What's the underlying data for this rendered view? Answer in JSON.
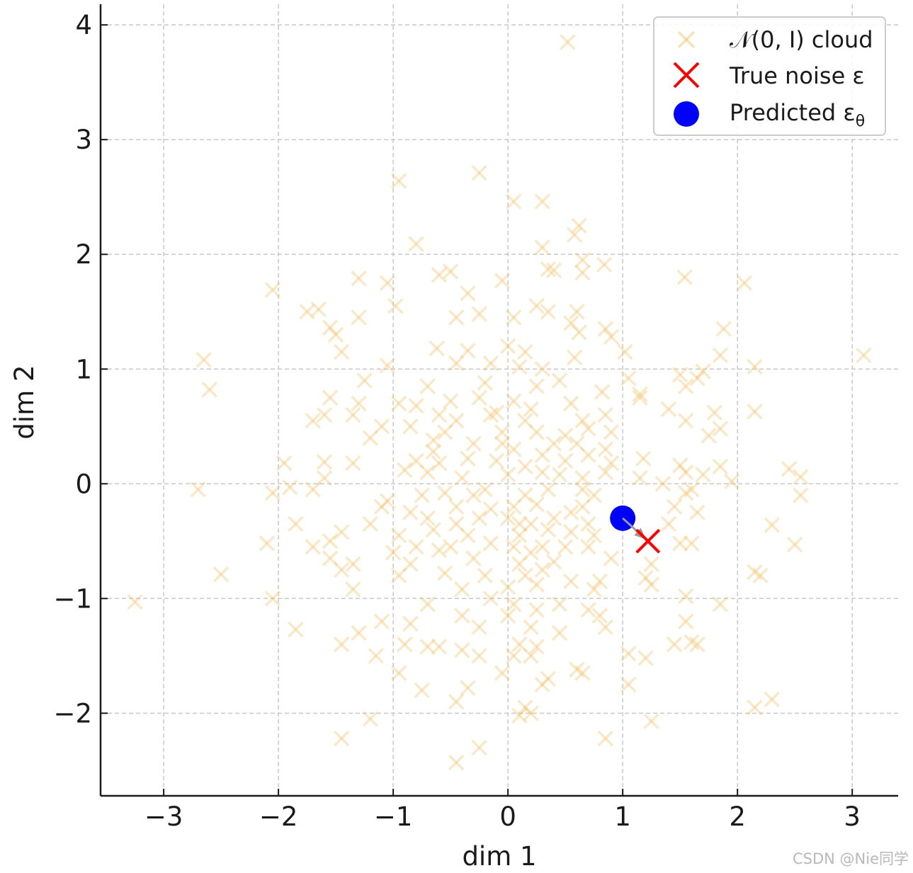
{
  "chart_data": {
    "type": "scatter",
    "xlabel": "dim 1",
    "ylabel": "dim 2",
    "xlim": [
      -3.55,
      3.4
    ],
    "ylim": [
      -2.72,
      4.18
    ],
    "xticks": [
      {
        "value": -3,
        "label": "−3"
      },
      {
        "value": -2,
        "label": "−2"
      },
      {
        "value": -1,
        "label": "−1"
      },
      {
        "value": 0,
        "label": "0"
      },
      {
        "value": 1,
        "label": "1"
      },
      {
        "value": 2,
        "label": "2"
      },
      {
        "value": 3,
        "label": "3"
      }
    ],
    "yticks": [
      {
        "value": -2,
        "label": "−2"
      },
      {
        "value": -1,
        "label": "−1"
      },
      {
        "value": 0,
        "label": "0"
      },
      {
        "value": 1,
        "label": "1"
      },
      {
        "value": 2,
        "label": "2"
      },
      {
        "value": 3,
        "label": "3"
      },
      {
        "value": 4,
        "label": "4"
      }
    ],
    "grid": true,
    "legend_position": "top-right",
    "series": [
      {
        "name_text": "𝒩(0, I) cloud",
        "marker": "x",
        "color": "#f0c060",
        "points": [
          [
            0.52,
            3.85
          ],
          [
            -0.25,
            2.71
          ],
          [
            -0.95,
            2.64
          ],
          [
            0.05,
            2.46
          ],
          [
            0.3,
            2.46
          ],
          [
            0.62,
            2.25
          ],
          [
            0.58,
            2.17
          ],
          [
            -0.8,
            2.09
          ],
          [
            0.3,
            2.06
          ],
          [
            0.65,
            1.95
          ],
          [
            -0.5,
            1.85
          ],
          [
            -0.6,
            1.82
          ],
          [
            0.35,
            1.87
          ],
          [
            0.4,
            1.86
          ],
          [
            0.65,
            1.84
          ],
          [
            0.84,
            1.91
          ],
          [
            1.54,
            1.8
          ],
          [
            2.06,
            1.75
          ],
          [
            -1.3,
            1.79
          ],
          [
            -1.05,
            1.75
          ],
          [
            -0.05,
            1.77
          ],
          [
            -2.05,
            1.69
          ],
          [
            -0.35,
            1.66
          ],
          [
            -1.75,
            1.5
          ],
          [
            -1.65,
            1.52
          ],
          [
            -0.98,
            1.55
          ],
          [
            -0.45,
            1.45
          ],
          [
            0.25,
            1.55
          ],
          [
            0.35,
            1.5
          ],
          [
            0.6,
            1.5
          ],
          [
            -1.3,
            1.45
          ],
          [
            -1.55,
            1.36
          ],
          [
            -1.5,
            1.3
          ],
          [
            -0.25,
            1.48
          ],
          [
            0.05,
            1.45
          ],
          [
            0.55,
            1.4
          ],
          [
            0.85,
            1.35
          ],
          [
            0.9,
            1.28
          ],
          [
            1.88,
            1.35
          ],
          [
            0.62,
            1.32
          ],
          [
            -1.45,
            1.15
          ],
          [
            -0.62,
            1.18
          ],
          [
            -0.35,
            1.16
          ],
          [
            0.0,
            1.2
          ],
          [
            0.15,
            1.15
          ],
          [
            0.58,
            1.1
          ],
          [
            1.02,
            1.15
          ],
          [
            1.85,
            1.12
          ],
          [
            3.1,
            1.12
          ],
          [
            -2.65,
            1.08
          ],
          [
            -1.05,
            1.03
          ],
          [
            -0.45,
            1.05
          ],
          [
            -0.15,
            1.05
          ],
          [
            0.1,
            1.02
          ],
          [
            0.3,
            1.0
          ],
          [
            1.5,
            0.95
          ],
          [
            1.7,
            0.98
          ],
          [
            2.15,
            1.02
          ],
          [
            -1.25,
            0.9
          ],
          [
            -0.7,
            0.85
          ],
          [
            -0.2,
            0.88
          ],
          [
            0.25,
            0.85
          ],
          [
            0.45,
            0.9
          ],
          [
            1.05,
            0.92
          ],
          [
            1.55,
            0.85
          ],
          [
            1.65,
            0.92
          ],
          [
            -2.6,
            0.82
          ],
          [
            0.82,
            0.8
          ],
          [
            1.15,
            0.75
          ],
          [
            -1.55,
            0.75
          ],
          [
            -1.3,
            0.7
          ],
          [
            -0.95,
            0.7
          ],
          [
            -0.8,
            0.68
          ],
          [
            -0.5,
            0.72
          ],
          [
            -0.25,
            0.75
          ],
          [
            0.05,
            0.72
          ],
          [
            0.2,
            0.65
          ],
          [
            0.55,
            0.7
          ],
          [
            1.15,
            0.78
          ],
          [
            -1.6,
            0.6
          ],
          [
            -1.35,
            0.6
          ],
          [
            -0.6,
            0.6
          ],
          [
            -0.45,
            0.55
          ],
          [
            -0.15,
            0.6
          ],
          [
            0.15,
            0.55
          ],
          [
            0.65,
            0.55
          ],
          [
            0.85,
            0.6
          ],
          [
            1.4,
            0.65
          ],
          [
            1.55,
            0.55
          ],
          [
            1.8,
            0.62
          ],
          [
            2.15,
            0.63
          ],
          [
            -1.7,
            0.55
          ],
          [
            -1.1,
            0.5
          ],
          [
            -0.85,
            0.5
          ],
          [
            -0.55,
            0.45
          ],
          [
            -0.05,
            0.45
          ],
          [
            0.25,
            0.45
          ],
          [
            0.5,
            0.42
          ],
          [
            0.7,
            0.48
          ],
          [
            0.9,
            0.45
          ],
          [
            1.75,
            0.42
          ],
          [
            1.85,
            0.48
          ],
          [
            -1.2,
            0.4
          ],
          [
            -0.65,
            0.38
          ],
          [
            -0.3,
            0.35
          ],
          [
            0.05,
            0.3
          ],
          [
            0.4,
            0.35
          ],
          [
            0.85,
            0.3
          ],
          [
            1.95,
            0.02
          ],
          [
            2.45,
            0.13
          ],
          [
            2.55,
            0.06
          ],
          [
            -1.95,
            0.18
          ],
          [
            -1.6,
            0.19
          ],
          [
            -1.35,
            0.18
          ],
          [
            -0.8,
            0.2
          ],
          [
            -0.6,
            0.18
          ],
          [
            -0.35,
            0.22
          ],
          [
            -0.1,
            0.2
          ],
          [
            0.15,
            0.15
          ],
          [
            0.5,
            0.2
          ],
          [
            0.7,
            0.25
          ],
          [
            0.9,
            0.18
          ],
          [
            1.18,
            0.22
          ],
          [
            1.5,
            0.16
          ],
          [
            1.7,
            0.08
          ],
          [
            1.85,
            0.15
          ],
          [
            -1.6,
            0.05
          ],
          [
            -0.9,
            0.12
          ],
          [
            -0.7,
            0.1
          ],
          [
            -0.4,
            0.05
          ],
          [
            0.0,
            0.08
          ],
          [
            0.3,
            0.1
          ],
          [
            0.65,
            0.05
          ],
          [
            0.85,
            0.1
          ],
          [
            1.15,
            0.05
          ],
          [
            1.35,
            0.0
          ],
          [
            1.55,
            0.1
          ],
          [
            1.6,
            -0.05
          ],
          [
            -2.7,
            -0.05
          ],
          [
            -2.05,
            -0.08
          ],
          [
            -1.9,
            -0.03
          ],
          [
            -1.7,
            -0.05
          ],
          [
            -1.05,
            -0.15
          ],
          [
            -0.75,
            -0.1
          ],
          [
            -0.55,
            -0.08
          ],
          [
            -0.2,
            -0.05
          ],
          [
            0.15,
            -0.1
          ],
          [
            0.35,
            -0.05
          ],
          [
            0.65,
            -0.05
          ],
          [
            0.75,
            -0.1
          ],
          [
            1.55,
            -0.08
          ],
          [
            2.55,
            -0.1
          ],
          [
            -1.1,
            -0.2
          ],
          [
            -0.85,
            -0.25
          ],
          [
            -0.45,
            -0.2
          ],
          [
            -0.15,
            -0.22
          ],
          [
            0.05,
            -0.2
          ],
          [
            0.25,
            -0.18
          ],
          [
            0.55,
            -0.25
          ],
          [
            0.65,
            -0.2
          ],
          [
            1.45,
            -0.2
          ],
          [
            1.65,
            -0.25
          ],
          [
            -1.85,
            -0.35
          ],
          [
            -1.2,
            -0.35
          ],
          [
            -0.7,
            -0.3
          ],
          [
            -0.45,
            -0.35
          ],
          [
            -0.25,
            -0.3
          ],
          [
            0.0,
            -0.3
          ],
          [
            0.2,
            -0.35
          ],
          [
            0.4,
            -0.3
          ],
          [
            0.7,
            -0.35
          ],
          [
            1.4,
            -0.35
          ],
          [
            2.3,
            -0.36
          ],
          [
            -1.45,
            -0.42
          ],
          [
            -0.95,
            -0.45
          ],
          [
            -0.65,
            -0.4
          ],
          [
            -0.35,
            -0.45
          ],
          [
            0.1,
            -0.45
          ],
          [
            0.35,
            -0.4
          ],
          [
            0.55,
            -0.42
          ],
          [
            0.75,
            -0.45
          ],
          [
            -2.1,
            -0.52
          ],
          [
            -1.55,
            -0.5
          ],
          [
            -0.8,
            -0.55
          ],
          [
            -0.5,
            -0.55
          ],
          [
            -0.15,
            -0.52
          ],
          [
            0.05,
            -0.55
          ],
          [
            0.3,
            -0.55
          ],
          [
            0.5,
            -0.55
          ],
          [
            1.5,
            -0.52
          ],
          [
            1.6,
            -0.52
          ],
          [
            2.5,
            -0.53
          ],
          [
            -1.7,
            -0.55
          ],
          [
            -1.0,
            -0.6
          ],
          [
            -0.6,
            -0.58
          ],
          [
            0.2,
            -0.6
          ],
          [
            0.7,
            -0.55
          ],
          [
            -1.55,
            -0.65
          ],
          [
            -1.35,
            -0.7
          ],
          [
            -0.85,
            -0.7
          ],
          [
            -0.3,
            -0.65
          ],
          [
            0.1,
            -0.7
          ],
          [
            0.4,
            -0.68
          ],
          [
            0.9,
            -0.65
          ],
          [
            1.25,
            -0.7
          ],
          [
            -2.5,
            -0.79
          ],
          [
            -1.45,
            -0.75
          ],
          [
            -0.95,
            -0.8
          ],
          [
            -0.55,
            -0.78
          ],
          [
            -0.2,
            -0.8
          ],
          [
            0.15,
            -0.8
          ],
          [
            0.3,
            -0.75
          ],
          [
            0.55,
            -0.85
          ],
          [
            0.8,
            -0.85
          ],
          [
            1.2,
            -0.82
          ],
          [
            2.15,
            -0.77
          ],
          [
            2.2,
            -0.8
          ],
          [
            -1.35,
            -0.92
          ],
          [
            -0.4,
            -0.92
          ],
          [
            0.0,
            -0.9
          ],
          [
            0.25,
            -0.88
          ],
          [
            0.75,
            -0.92
          ],
          [
            1.25,
            -0.88
          ],
          [
            -3.25,
            -1.03
          ],
          [
            -2.05,
            -1.0
          ],
          [
            -0.7,
            -1.05
          ],
          [
            -0.15,
            -1.0
          ],
          [
            0.05,
            -1.05
          ],
          [
            0.45,
            -1.05
          ],
          [
            1.55,
            -0.98
          ],
          [
            1.85,
            -1.05
          ],
          [
            -1.1,
            -1.2
          ],
          [
            -0.85,
            -1.22
          ],
          [
            -0.4,
            -1.15
          ],
          [
            0.0,
            -1.15
          ],
          [
            0.25,
            -1.1
          ],
          [
            0.7,
            -1.1
          ],
          [
            0.8,
            -1.15
          ],
          [
            1.55,
            -1.2
          ],
          [
            -1.85,
            -1.27
          ],
          [
            -1.3,
            -1.3
          ],
          [
            -0.25,
            -1.25
          ],
          [
            0.2,
            -1.25
          ],
          [
            0.45,
            -1.3
          ],
          [
            0.85,
            -1.25
          ],
          [
            1.6,
            -1.38
          ],
          [
            -1.45,
            -1.4
          ],
          [
            -0.9,
            -1.4
          ],
          [
            -0.7,
            -1.42
          ],
          [
            -0.6,
            -1.42
          ],
          [
            -0.4,
            -1.45
          ],
          [
            0.1,
            -1.4
          ],
          [
            0.25,
            -1.42
          ],
          [
            1.45,
            -1.4
          ],
          [
            1.65,
            -1.4
          ],
          [
            -1.15,
            -1.5
          ],
          [
            -0.25,
            -1.5
          ],
          [
            0.05,
            -1.5
          ],
          [
            0.2,
            -1.5
          ],
          [
            1.05,
            -1.48
          ],
          [
            1.2,
            -1.52
          ],
          [
            -0.95,
            -1.65
          ],
          [
            -0.05,
            -1.65
          ],
          [
            0.35,
            -1.7
          ],
          [
            0.6,
            -1.62
          ],
          [
            0.65,
            -1.65
          ],
          [
            1.05,
            -1.75
          ],
          [
            -0.75,
            -1.8
          ],
          [
            -0.35,
            -1.78
          ],
          [
            0.3,
            -1.75
          ],
          [
            -0.45,
            -1.9
          ],
          [
            0.15,
            -1.95
          ],
          [
            0.2,
            -2.0
          ],
          [
            0.1,
            -2.02
          ],
          [
            2.15,
            -1.95
          ],
          [
            2.3,
            -1.88
          ],
          [
            -1.2,
            -2.05
          ],
          [
            -1.45,
            -2.22
          ],
          [
            0.85,
            -2.22
          ],
          [
            1.25,
            -2.07
          ],
          [
            -0.25,
            -2.3
          ],
          [
            -0.45,
            -2.43
          ],
          [
            -0.1,
            0.62
          ],
          [
            0.3,
            0.25
          ],
          [
            -0.3,
            -0.1
          ],
          [
            0.45,
            0.08
          ],
          [
            -0.05,
            0.35
          ],
          [
            0.1,
            -0.35
          ],
          [
            0.6,
            0.35
          ],
          [
            -0.65,
            0.28
          ]
        ]
      },
      {
        "name_text": "True noise ε",
        "marker": "x",
        "color": "#ff0000",
        "points": [
          [
            1.22,
            -0.5
          ]
        ]
      },
      {
        "name_text": "Predicted ε",
        "name_subscript": "θ",
        "marker": "o",
        "color": "#0000ff",
        "points": [
          [
            1.0,
            -0.3
          ]
        ]
      }
    ],
    "arrow": {
      "from": [
        1.0,
        -0.3
      ],
      "to": [
        1.22,
        -0.5
      ],
      "color": "#999999"
    }
  },
  "watermark": "CSDN @Nie同学"
}
